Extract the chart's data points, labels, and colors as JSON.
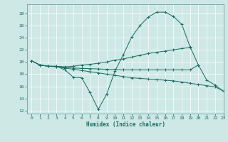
{
  "xlabel": "Humidex (Indice chaleur)",
  "xlim": [
    -0.5,
    23
  ],
  "ylim": [
    11.5,
    29.5
  ],
  "yticks": [
    12,
    14,
    16,
    18,
    20,
    22,
    24,
    26,
    28
  ],
  "xticks": [
    0,
    1,
    2,
    3,
    4,
    5,
    6,
    7,
    8,
    9,
    10,
    11,
    12,
    13,
    14,
    15,
    16,
    17,
    18,
    19,
    20,
    21,
    22,
    23
  ],
  "bg_color": "#cde8e5",
  "line_color": "#1a6b5e",
  "grid_color": "#b0d8d4",
  "lines": [
    {
      "x": [
        0,
        1,
        2,
        3,
        4,
        5,
        6,
        7,
        8,
        9,
        10,
        11,
        12,
        13,
        14,
        15,
        16,
        17,
        18,
        19,
        20,
        21,
        22,
        23
      ],
      "y": [
        20.2,
        19.5,
        19.3,
        19.3,
        18.7,
        17.5,
        17.4,
        15.0,
        12.2,
        14.7,
        18.5,
        21.2,
        24.1,
        26.0,
        27.4,
        28.2,
        28.2,
        27.5,
        26.2,
        22.5,
        19.5,
        17.0,
        16.2,
        15.2
      ]
    },
    {
      "x": [
        0,
        1,
        2,
        3,
        4,
        5,
        6,
        7,
        8,
        9,
        10,
        11,
        12,
        13,
        14,
        15,
        16,
        17,
        18,
        19
      ],
      "y": [
        20.2,
        19.5,
        19.3,
        19.3,
        19.2,
        19.3,
        19.5,
        19.6,
        19.8,
        20.0,
        20.3,
        20.5,
        20.8,
        21.1,
        21.4,
        21.6,
        21.8,
        22.0,
        22.2,
        22.4
      ]
    },
    {
      "x": [
        0,
        1,
        2,
        3,
        4,
        5,
        6,
        7,
        8,
        9,
        10,
        11,
        12,
        13,
        14,
        15,
        16,
        17,
        18,
        19,
        20,
        21,
        22,
        23
      ],
      "y": [
        20.2,
        19.5,
        19.3,
        19.2,
        19.0,
        18.8,
        18.6,
        18.4,
        18.2,
        18.0,
        17.8,
        17.6,
        17.4,
        17.3,
        17.2,
        17.1,
        17.0,
        16.9,
        16.7,
        16.5,
        16.3,
        16.1,
        15.9,
        15.2
      ]
    },
    {
      "x": [
        0,
        1,
        2,
        3,
        4,
        5,
        6,
        7,
        8,
        9,
        10,
        11,
        12,
        13,
        14,
        15,
        16,
        17,
        18,
        19,
        20
      ],
      "y": [
        20.2,
        19.5,
        19.3,
        19.25,
        19.1,
        19.0,
        18.95,
        18.9,
        18.85,
        18.8,
        18.75,
        18.7,
        18.7,
        18.7,
        18.7,
        18.7,
        18.7,
        18.7,
        18.7,
        18.7,
        19.5
      ]
    }
  ]
}
